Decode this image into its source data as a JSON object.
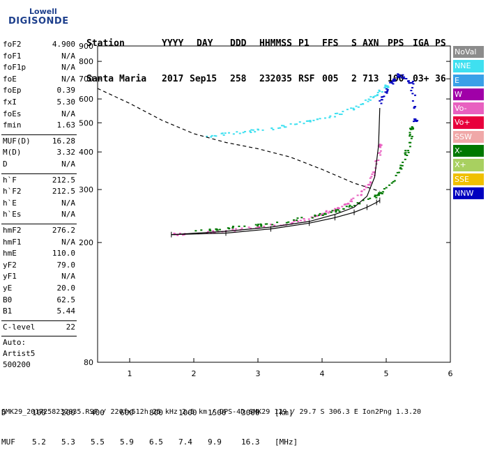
{
  "logo": {
    "line1": "Lowell",
    "line2": "DIGISONDE"
  },
  "header": {
    "labels": [
      "Station",
      "YYYY",
      "DAY",
      "DDD",
      "HHMMSS",
      "P1",
      "FFS",
      "S",
      "AXN",
      "PPS",
      "IGA",
      "PS"
    ],
    "values": [
      "Santa Maria",
      "2017",
      "Sep15",
      "258",
      "232035",
      "RSF",
      "005",
      "2",
      "713",
      "100",
      "03+",
      "36"
    ]
  },
  "params": {
    "group1": [
      {
        "label": "foF2",
        "value": "4.900"
      },
      {
        "label": "foF1",
        "value": "N/A"
      },
      {
        "label": "foF1p",
        "value": "N/A"
      },
      {
        "label": "foE",
        "value": "N/A"
      },
      {
        "label": "foEp",
        "value": "0.39"
      },
      {
        "label": "fxI",
        "value": "5.30"
      },
      {
        "label": "foEs",
        "value": "N/A"
      },
      {
        "label": "fmin",
        "value": "1.63"
      }
    ],
    "group2": [
      {
        "label": "MUF(D)",
        "value": "16.28"
      },
      {
        "label": "M(D)",
        "value": "3.32"
      },
      {
        "label": "D",
        "value": "N/A"
      }
    ],
    "group3": [
      {
        "label": "h`F",
        "value": "212.5"
      },
      {
        "label": "h`F2",
        "value": "212.5"
      },
      {
        "label": "h`E",
        "value": "N/A"
      },
      {
        "label": "h`Es",
        "value": "N/A"
      }
    ],
    "group4": [
      {
        "label": "hmF2",
        "value": "276.2"
      },
      {
        "label": "hmF1",
        "value": "N/A"
      },
      {
        "label": "hmE",
        "value": "110.0"
      },
      {
        "label": "yF2",
        "value": "79.0"
      },
      {
        "label": "yF1",
        "value": "N/A"
      },
      {
        "label": "yE",
        "value": "20.0"
      },
      {
        "label": "B0",
        "value": "62.5"
      },
      {
        "label": "B1",
        "value": "5.44"
      }
    ],
    "group5": [
      {
        "label": "C-level",
        "value": "22"
      }
    ],
    "auto": [
      "Auto:",
      "Artist5",
      "500200"
    ]
  },
  "legend": [
    {
      "label": "NoVal",
      "color": "#8c8c8c"
    },
    {
      "label": "NNE",
      "color": "#3fe0f0"
    },
    {
      "label": "E",
      "color": "#3aa0e8"
    },
    {
      "label": "W",
      "color": "#a000a8"
    },
    {
      "label": "Vo-",
      "color": "#e860c0"
    },
    {
      "label": "Vo+",
      "color": "#e8003c"
    },
    {
      "label": "SSW",
      "color": "#f0a8a8"
    },
    {
      "label": "X-",
      "color": "#007800"
    },
    {
      "label": "X+",
      "color": "#a8d060"
    },
    {
      "label": "SSE",
      "color": "#f0c000"
    },
    {
      "label": "NNW",
      "color": "#0000c0"
    }
  ],
  "chart_data": {
    "type": "scatter",
    "title": "",
    "xlabel": "",
    "ylabel": "",
    "xlim": [
      0.5,
      6.0
    ],
    "ylim": [
      80,
      900
    ],
    "y_scale": "log",
    "x_ticks": [
      "1",
      "2",
      "3",
      "4",
      "5",
      "6"
    ],
    "y_ticks": [
      "80",
      "200",
      "300",
      "400",
      "500",
      "600",
      "700",
      "800",
      "900"
    ],
    "series": [
      {
        "name": "Vo-",
        "points": [
          [
            1.65,
            212
          ],
          [
            2.0,
            215
          ],
          [
            2.5,
            219
          ],
          [
            3.0,
            224
          ],
          [
            3.5,
            232
          ],
          [
            3.8,
            240
          ],
          [
            4.0,
            248
          ],
          [
            4.2,
            258
          ],
          [
            4.4,
            270
          ],
          [
            4.6,
            290
          ],
          [
            4.75,
            318
          ],
          [
            4.85,
            360
          ],
          [
            4.9,
            420
          ]
        ]
      },
      {
        "name": "X-",
        "points": [
          [
            2.0,
            219
          ],
          [
            2.5,
            223
          ],
          [
            3.0,
            228
          ],
          [
            3.5,
            236
          ],
          [
            4.0,
            248
          ],
          [
            4.3,
            258
          ],
          [
            4.6,
            272
          ],
          [
            4.9,
            290
          ],
          [
            5.1,
            318
          ],
          [
            5.25,
            360
          ],
          [
            5.35,
            420
          ],
          [
            5.4,
            480
          ]
        ]
      },
      {
        "name": "NNE",
        "points": [
          [
            2.2,
            450
          ],
          [
            2.6,
            462
          ],
          [
            3.0,
            472
          ],
          [
            3.4,
            486
          ],
          [
            3.8,
            505
          ],
          [
            4.2,
            530
          ],
          [
            4.5,
            560
          ],
          [
            4.8,
            610
          ],
          [
            5.0,
            660
          ]
        ]
      },
      {
        "name": "NNW",
        "points": [
          [
            4.9,
            580
          ],
          [
            5.0,
            640
          ],
          [
            5.1,
            690
          ],
          [
            5.2,
            720
          ],
          [
            5.3,
            700
          ],
          [
            5.4,
            680
          ],
          [
            5.45,
            510
          ]
        ]
      }
    ],
    "lines": {
      "profile": [
        [
          1.65,
          212.5
        ],
        [
          2.5,
          215
        ],
        [
          3.2,
          222
        ],
        [
          3.8,
          232
        ],
        [
          4.2,
          242
        ],
        [
          4.5,
          252
        ],
        [
          4.7,
          262
        ],
        [
          4.85,
          272
        ],
        [
          4.9,
          276.2
        ]
      ],
      "trace_O": [
        [
          1.65,
          212.5
        ],
        [
          2.5,
          218
        ],
        [
          3.2,
          225
        ],
        [
          3.8,
          235
        ],
        [
          4.2,
          248
        ],
        [
          4.5,
          262
        ],
        [
          4.7,
          285
        ],
        [
          4.82,
          330
        ],
        [
          4.88,
          420
        ],
        [
          4.9,
          560
        ]
      ],
      "dashed_muf": [
        [
          0.5,
          650
        ],
        [
          1.0,
          580
        ],
        [
          1.5,
          510
        ],
        [
          2.0,
          460
        ],
        [
          2.5,
          430
        ],
        [
          3.0,
          410
        ],
        [
          3.5,
          385
        ],
        [
          4.0,
          350
        ],
        [
          4.5,
          315
        ],
        [
          4.9,
          296
        ]
      ]
    }
  },
  "bottom_table": {
    "row1_label": "D",
    "row1_values": [
      "100",
      "200",
      "400",
      "600",
      "800",
      "1000",
      "1500",
      "3000",
      "[km]"
    ],
    "row2_label": "MUF",
    "row2_values": [
      "5.2",
      "5.3",
      "5.5",
      "5.9",
      "6.5",
      "7.4",
      "9.9",
      "16.3",
      "[MHz]"
    ]
  },
  "footer": "SMK29_2017258232035.RSF / 220fx512h 25 kHz 2.5 km / DPS-4D SMK29 129 / 29.7 S 306.3 E Ion2Png 1.3.20"
}
